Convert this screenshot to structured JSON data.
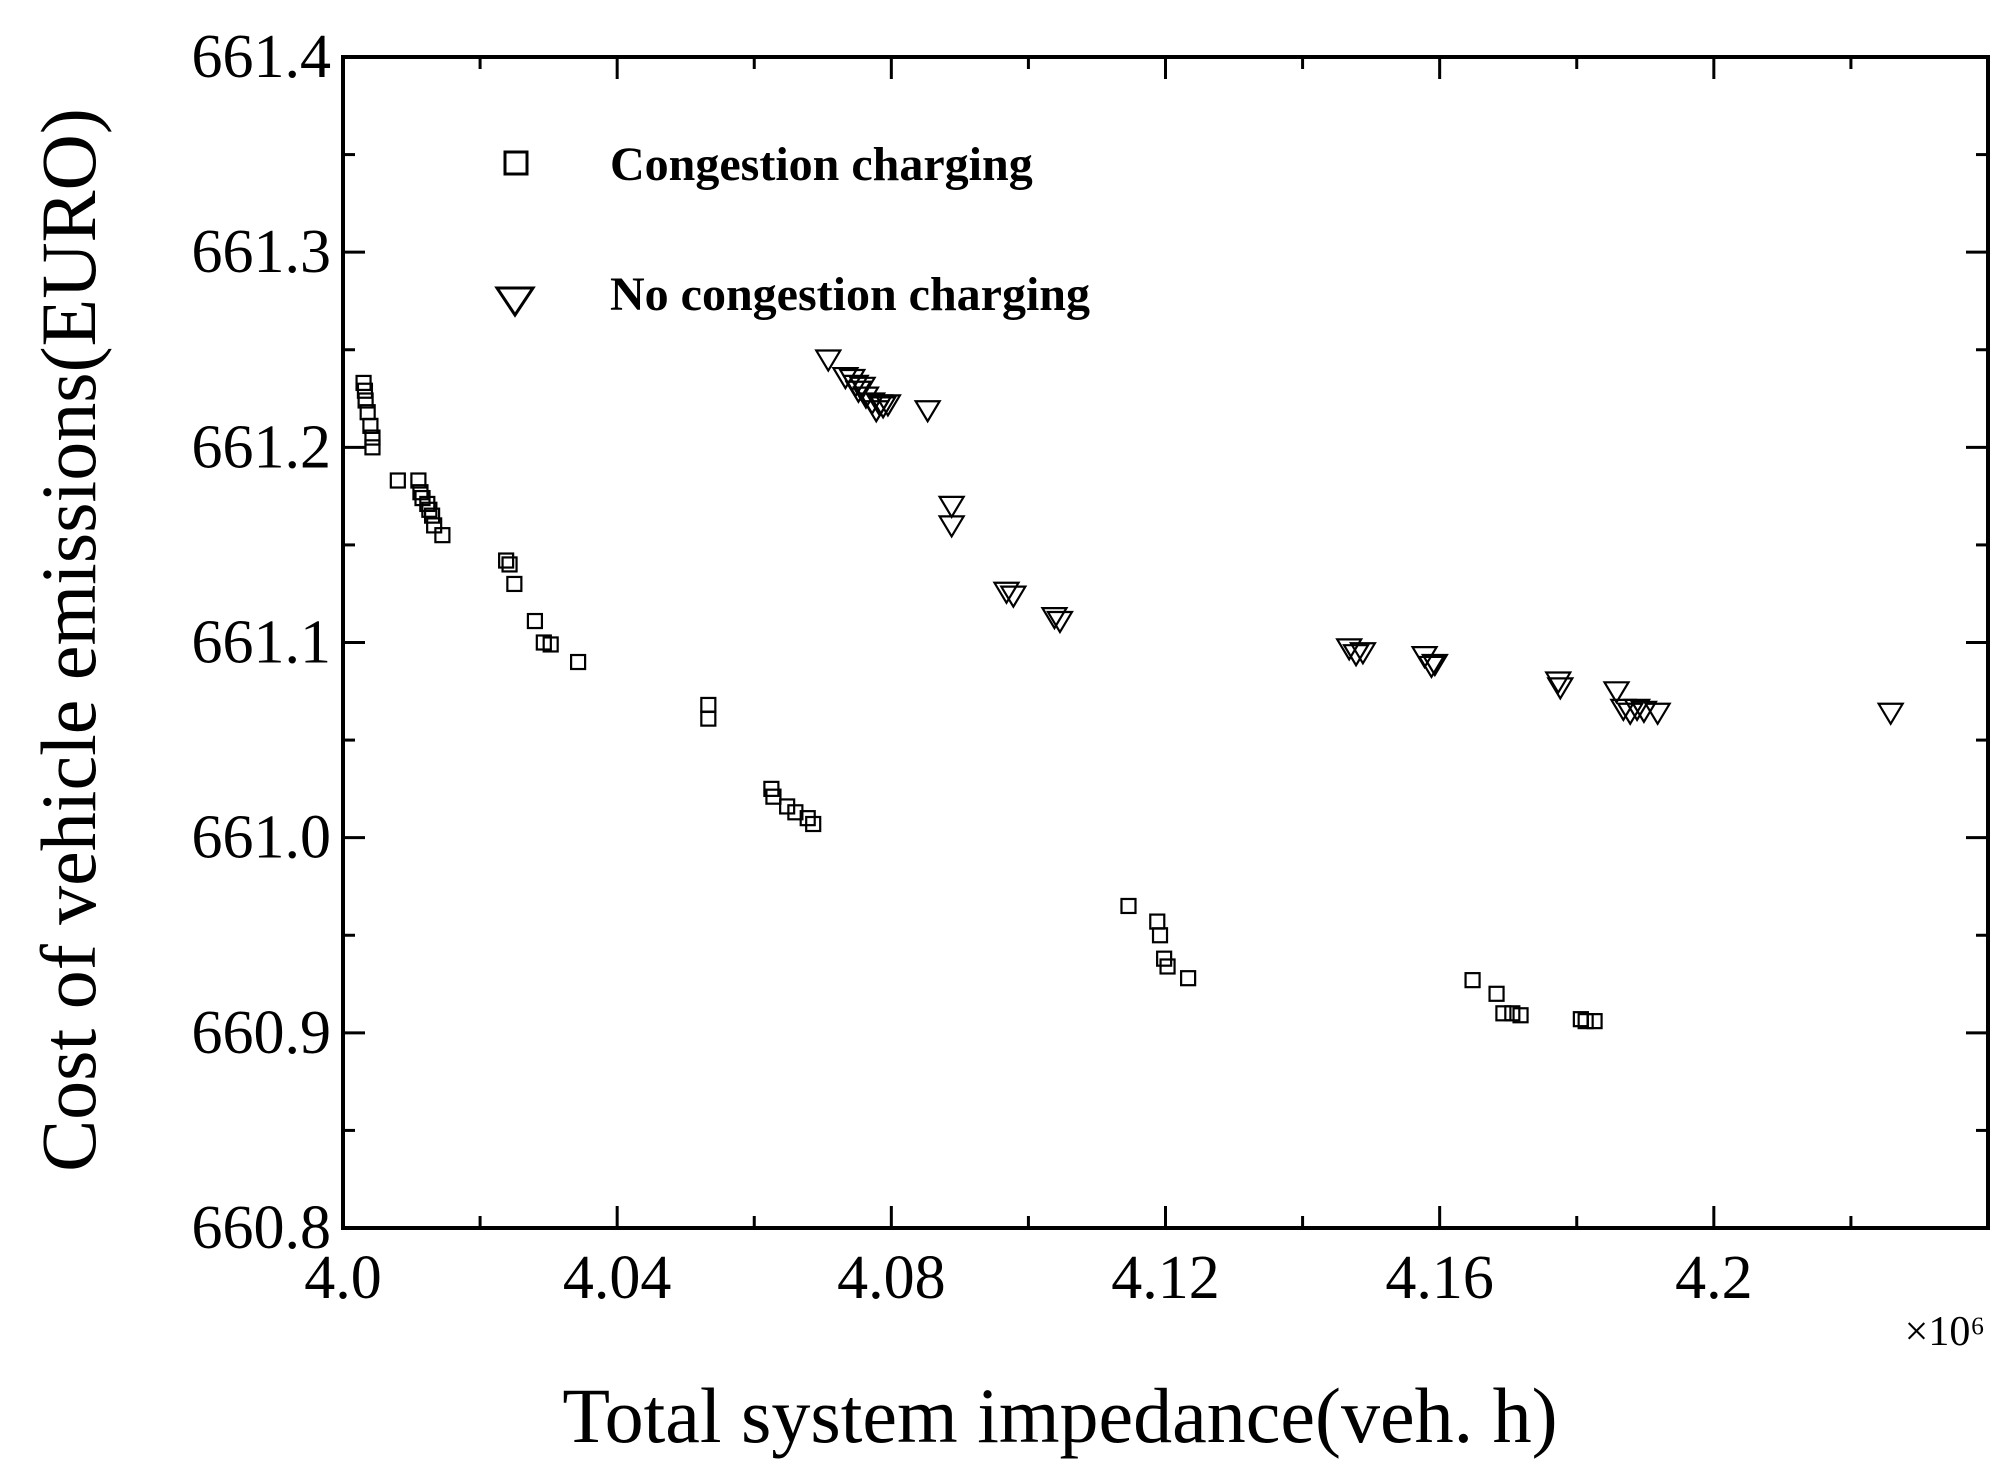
{
  "chart_data": {
    "type": "scatter",
    "title": "",
    "xlabel": "Total system impedance(veh. h)",
    "ylabel": "Cost of vehicle emissions(EURO)",
    "x_multiplier_label": "×10⁶",
    "xlim": [
      4.0,
      4.24
    ],
    "ylim": [
      660.8,
      661.4
    ],
    "x_ticks": [
      4.0,
      4.04,
      4.08,
      4.12,
      4.16,
      4.2
    ],
    "x_tick_labels": [
      "4.0",
      "4.04",
      "4.08",
      "4.12",
      "4.16",
      "4.2"
    ],
    "y_ticks": [
      660.8,
      660.9,
      661.0,
      661.1,
      661.2,
      661.3,
      661.4
    ],
    "y_tick_labels": [
      "660.8",
      "660.9",
      "661.0",
      "661.1",
      "661.2",
      "661.3",
      "661.4"
    ],
    "grid": false,
    "legend_position": "top-left",
    "series": [
      {
        "name": "Congestion charging",
        "marker": "square",
        "points": [
          [
            4.003,
            661.233
          ],
          [
            4.0032,
            661.229
          ],
          [
            4.0033,
            661.224
          ],
          [
            4.0036,
            661.218
          ],
          [
            4.004,
            661.211
          ],
          [
            4.0043,
            661.205
          ],
          [
            4.0043,
            661.2
          ],
          [
            4.008,
            661.183
          ],
          [
            4.011,
            661.183
          ],
          [
            4.0113,
            661.177
          ],
          [
            4.0116,
            661.174
          ],
          [
            4.0123,
            661.171
          ],
          [
            4.0126,
            661.168
          ],
          [
            4.013,
            661.165
          ],
          [
            4.0133,
            661.16
          ],
          [
            4.0145,
            661.155
          ],
          [
            4.0238,
            661.142
          ],
          [
            4.0243,
            661.14
          ],
          [
            4.025,
            661.13
          ],
          [
            4.028,
            661.111
          ],
          [
            4.0293,
            661.1
          ],
          [
            4.0303,
            661.099
          ],
          [
            4.0343,
            661.09
          ],
          [
            4.0533,
            661.068
          ],
          [
            4.0533,
            661.061
          ],
          [
            4.0625,
            661.025
          ],
          [
            4.0628,
            661.021
          ],
          [
            4.0648,
            661.016
          ],
          [
            4.066,
            661.013
          ],
          [
            4.0678,
            661.01
          ],
          [
            4.0686,
            661.007
          ],
          [
            4.1146,
            660.965
          ],
          [
            4.1188,
            660.957
          ],
          [
            4.1192,
            660.95
          ],
          [
            4.1198,
            660.938
          ],
          [
            4.1203,
            660.934
          ],
          [
            4.1233,
            660.928
          ],
          [
            4.1648,
            660.927
          ],
          [
            4.1683,
            660.92
          ],
          [
            4.1693,
            660.91
          ],
          [
            4.1706,
            660.91
          ],
          [
            4.1718,
            660.909
          ],
          [
            4.1806,
            660.907
          ],
          [
            4.1813,
            660.906
          ],
          [
            4.1826,
            660.906
          ]
        ]
      },
      {
        "name": "No congestion charging",
        "marker": "triangle-down",
        "points": [
          [
            4.0708,
            661.245
          ],
          [
            4.0733,
            661.236
          ],
          [
            4.0743,
            661.235
          ],
          [
            4.0748,
            661.232
          ],
          [
            4.0752,
            661.229
          ],
          [
            4.0758,
            661.231
          ],
          [
            4.0763,
            661.226
          ],
          [
            4.0772,
            661.223
          ],
          [
            4.0778,
            661.219
          ],
          [
            4.0783,
            661.222
          ],
          [
            4.0788,
            661.221
          ],
          [
            4.0795,
            661.222
          ],
          [
            4.0853,
            661.219
          ],
          [
            4.0888,
            661.17
          ],
          [
            4.0888,
            661.16
          ],
          [
            4.0968,
            661.126
          ],
          [
            4.0978,
            661.124
          ],
          [
            4.1038,
            661.113
          ],
          [
            4.1046,
            661.111
          ],
          [
            4.1468,
            661.097
          ],
          [
            4.1478,
            661.094
          ],
          [
            4.1488,
            661.095
          ],
          [
            4.1578,
            661.093
          ],
          [
            4.1588,
            661.088
          ],
          [
            4.1593,
            661.089
          ],
          [
            4.1773,
            661.08
          ],
          [
            4.1776,
            661.077
          ],
          [
            4.1858,
            661.075
          ],
          [
            4.1868,
            661.066
          ],
          [
            4.1878,
            661.064
          ],
          [
            4.1888,
            661.066
          ],
          [
            4.1898,
            661.065
          ],
          [
            4.1918,
            661.064
          ],
          [
            4.2258,
            661.064
          ]
        ]
      }
    ]
  }
}
